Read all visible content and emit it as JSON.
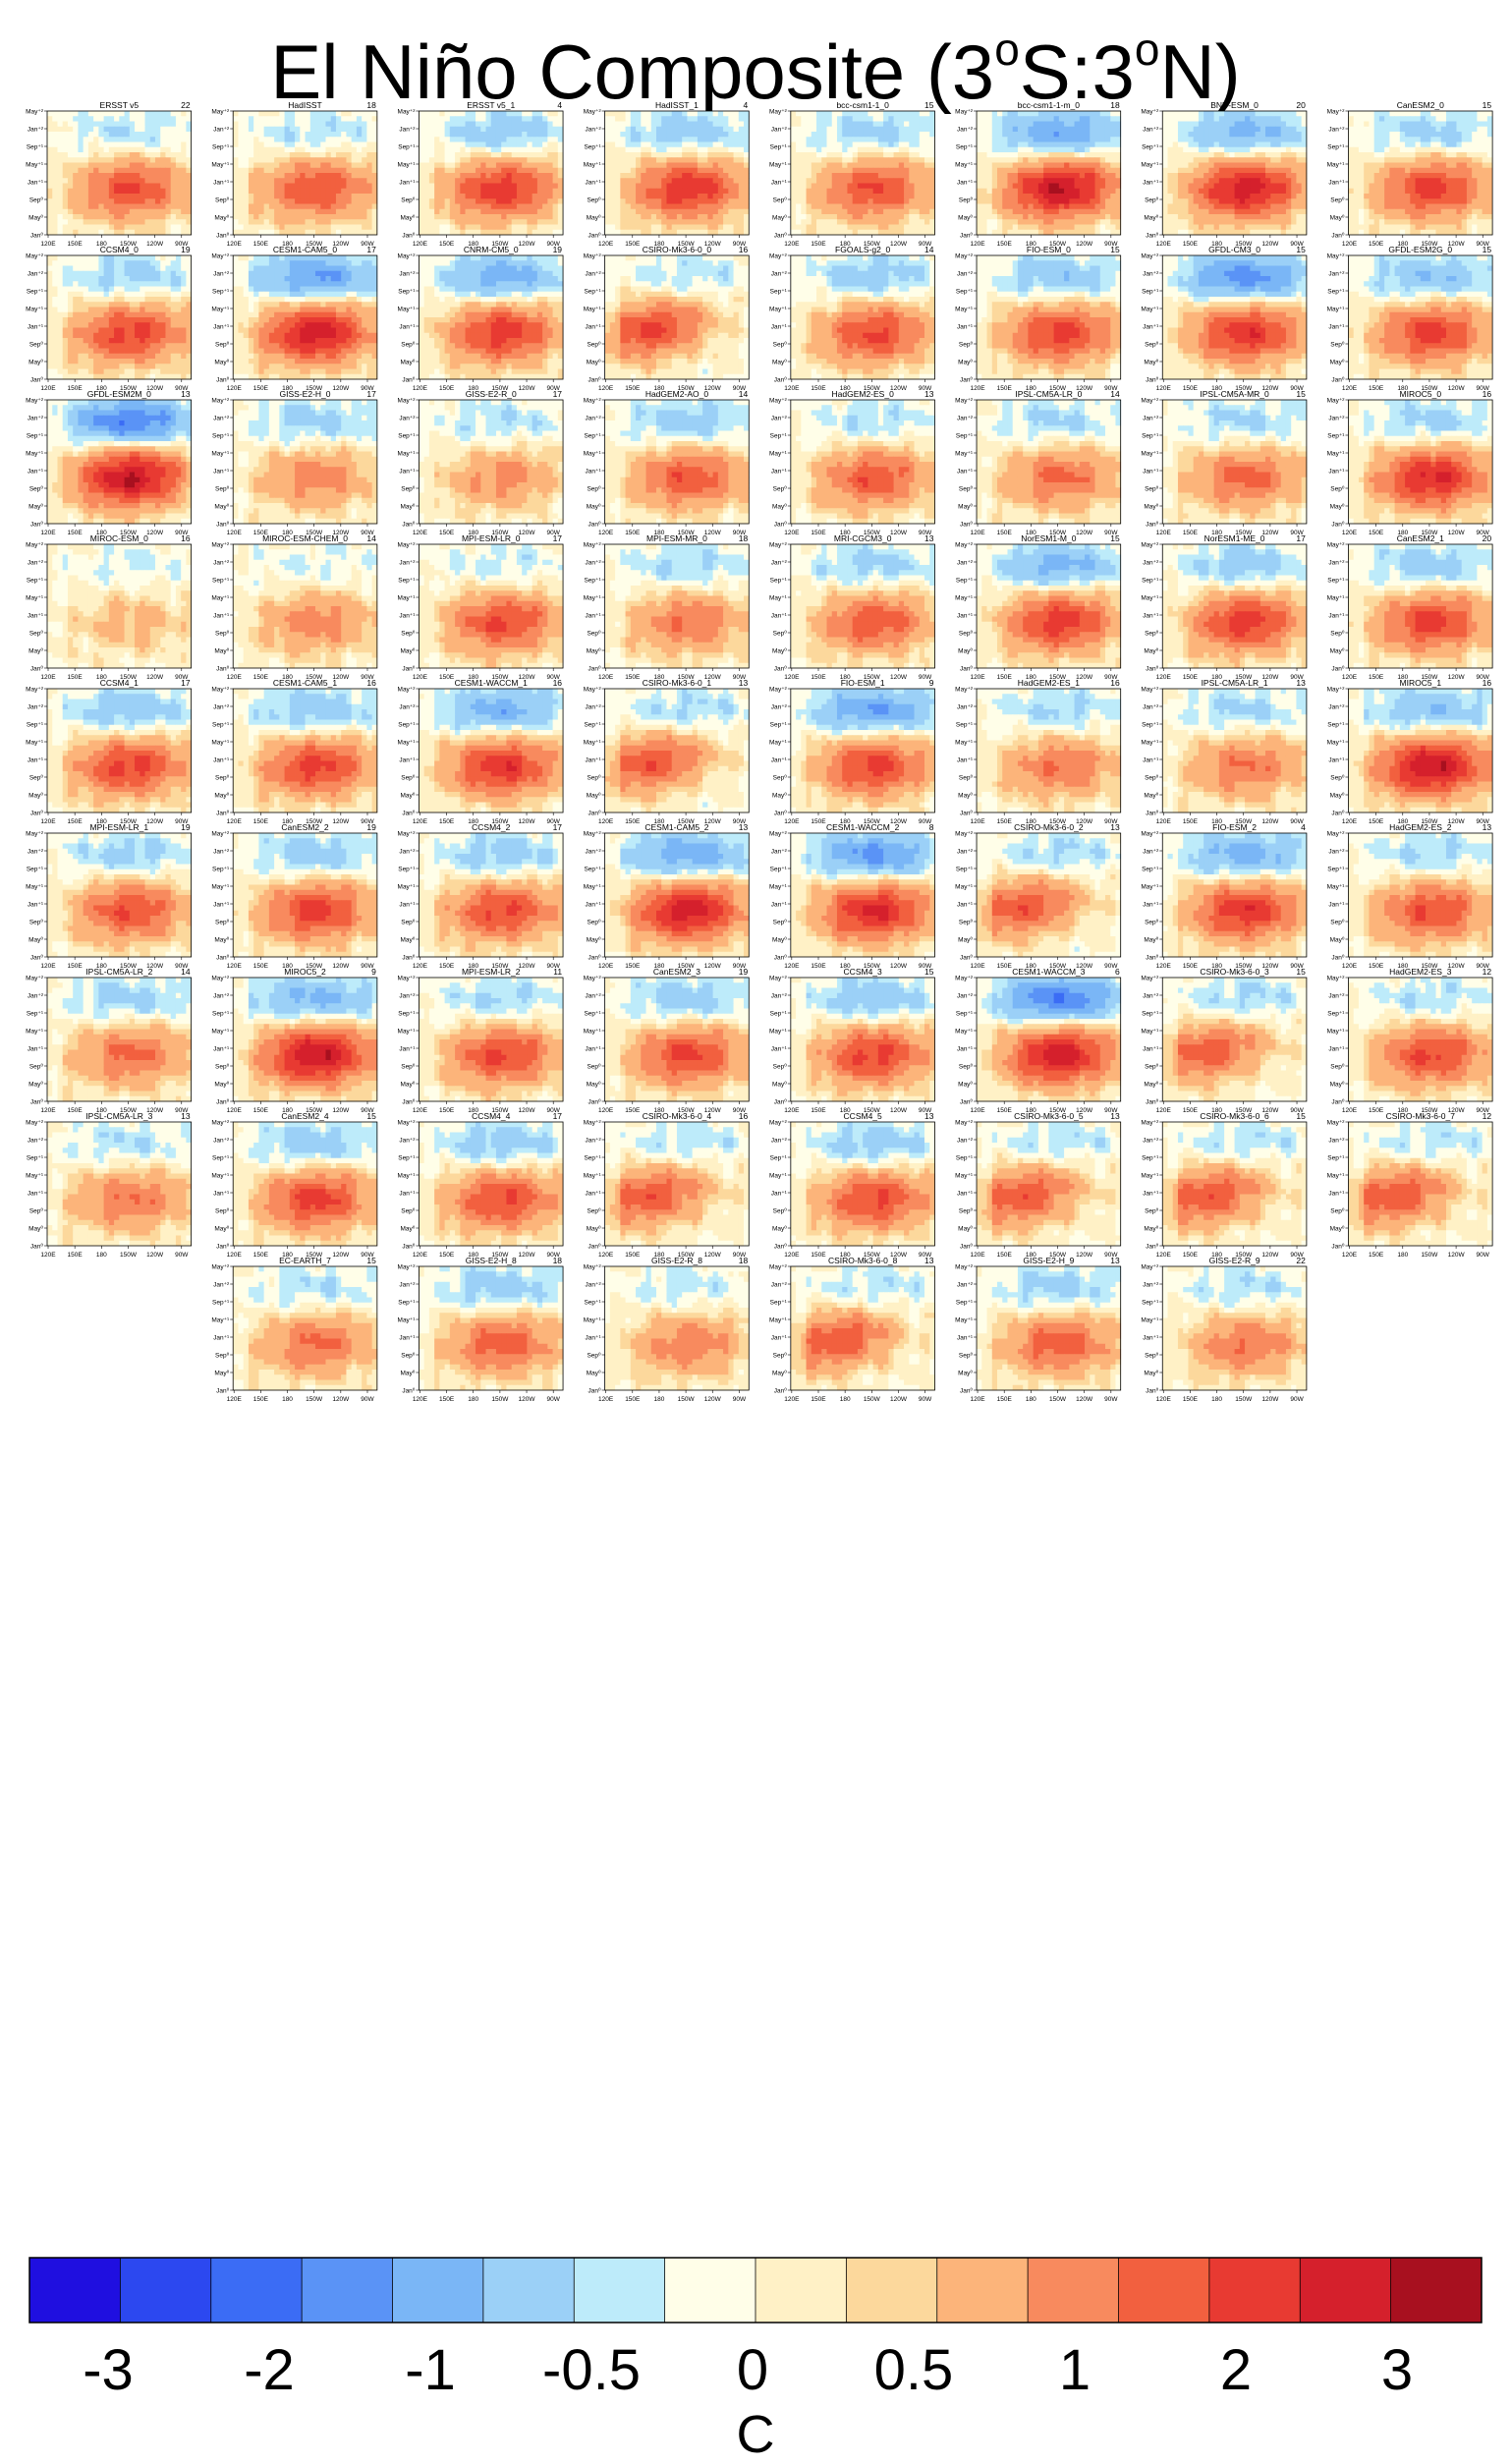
{
  "title": {
    "prefix": "El Niño Composite (3",
    "deg1": "o",
    "mid": "S:3",
    "deg2": "o",
    "suffix": "N)"
  },
  "axes": {
    "x_ticks": [
      "120E",
      "150E",
      "180",
      "150W",
      "120W",
      "90W"
    ],
    "y_ticks": [
      "Jan⁰",
      "May⁰",
      "Sep⁰",
      "Jan⁺¹",
      "May⁺¹",
      "Sep⁺¹",
      "Jan⁺²",
      "May⁺²"
    ]
  },
  "colorbar": {
    "unit": "C",
    "labels": [
      "-3",
      "-2",
      "-1",
      "-0.5",
      "0",
      "0.5",
      "1",
      "2",
      "3"
    ],
    "colors": [
      "#1f0fe0",
      "#2c48f0",
      "#3b6cf5",
      "#5a93f6",
      "#7ab6f6",
      "#9bd0f7",
      "#bdebfa",
      "#fffee8",
      "#fff1c6",
      "#fcd89c",
      "#fcb47a",
      "#f88a5e",
      "#f2603f",
      "#e83a32",
      "#d5202c",
      "#a8101f"
    ]
  },
  "chart_data": {
    "type": "heatmap",
    "title": "El Niño Composite (3oS:3oN)",
    "xlabel": "",
    "ylabel": "",
    "x_ticks": [
      "120E",
      "150E",
      "180",
      "150W",
      "120W",
      "90W"
    ],
    "y_ticks": [
      "Jan0",
      "May0",
      "Sep0",
      "Jan+1",
      "May+1",
      "Sep+1",
      "Jan+2",
      "May+2"
    ],
    "colorbar": {
      "unit": "C",
      "ticks": [
        -3,
        -2,
        -1,
        -0.5,
        0,
        0.5,
        1,
        2,
        3
      ]
    },
    "panels": [
      {
        "name": "ERSST v5",
        "count": 22,
        "peak": 2.0,
        "neg": 0.5,
        "west": 0
      },
      {
        "name": "HadISST",
        "count": 18,
        "peak": 2.0,
        "neg": 0.5,
        "west": 0
      },
      {
        "name": "ERSST v5_1",
        "count": 4,
        "peak": 2.3,
        "neg": 0.8,
        "west": 0
      },
      {
        "name": "HadISST_1",
        "count": 4,
        "peak": 2.4,
        "neg": 0.8,
        "west": 0
      },
      {
        "name": "bcc-csm1-1_0",
        "count": 15,
        "peak": 2.0,
        "neg": 0.7,
        "west": 0
      },
      {
        "name": "bcc-csm1-1-m_0",
        "count": 18,
        "peak": 3.0,
        "neg": 1.5,
        "west": 0
      },
      {
        "name": "BNU-ESM_0",
        "count": 20,
        "peak": 2.8,
        "neg": 1.2,
        "west": 0
      },
      {
        "name": "CanESM2_0",
        "count": 15,
        "peak": 2.2,
        "neg": 0.7,
        "west": 0
      },
      {
        "name": "CCSM4_0",
        "count": 19,
        "peak": 2.2,
        "neg": 0.7,
        "west": 0
      },
      {
        "name": "CESM1-CAM5_0",
        "count": 17,
        "peak": 2.8,
        "neg": 1.6,
        "west": 0
      },
      {
        "name": "CNRM-CM5_0",
        "count": 19,
        "peak": 2.3,
        "neg": 1.3,
        "west": 0
      },
      {
        "name": "CSIRO-Mk3-6-0_0",
        "count": 16,
        "peak": 2.1,
        "neg": 0.5,
        "west": 1
      },
      {
        "name": "FGOALS-g2_0",
        "count": 14,
        "peak": 2.1,
        "neg": 0.8,
        "west": 0
      },
      {
        "name": "FIO-ESM_0",
        "count": 15,
        "peak": 2.2,
        "neg": 0.9,
        "west": 0
      },
      {
        "name": "GFDL-CM3_0",
        "count": 15,
        "peak": 2.4,
        "neg": 1.8,
        "west": 0
      },
      {
        "name": "GFDL-ESM2G_0",
        "count": 15,
        "peak": 2.2,
        "neg": 1.0,
        "west": 0
      },
      {
        "name": "GFDL-ESM2M_0",
        "count": 13,
        "peak": 3.0,
        "neg": 2.0,
        "west": 0
      },
      {
        "name": "GISS-E2-H_0",
        "count": 17,
        "peak": 1.3,
        "neg": 0.7,
        "west": 0
      },
      {
        "name": "GISS-E2-R_0",
        "count": 17,
        "peak": 1.2,
        "neg": 0.5,
        "west": 0
      },
      {
        "name": "HadGEM2-AO_0",
        "count": 14,
        "peak": 1.9,
        "neg": 0.8,
        "west": 0
      },
      {
        "name": "HadGEM2-ES_0",
        "count": 13,
        "peak": 1.9,
        "neg": 0.5,
        "west": 0
      },
      {
        "name": "IPSL-CM5A-LR_0",
        "count": 14,
        "peak": 1.6,
        "neg": 0.6,
        "west": 0
      },
      {
        "name": "IPSL-CM5A-MR_0",
        "count": 15,
        "peak": 1.7,
        "neg": 0.6,
        "west": 0
      },
      {
        "name": "MIROC5_0",
        "count": 16,
        "peak": 2.6,
        "neg": 0.7,
        "west": 0
      },
      {
        "name": "MIROC-ESM_0",
        "count": 16,
        "peak": 0.7,
        "neg": 0.3,
        "west": 0
      },
      {
        "name": "MIROC-ESM-CHEM_0",
        "count": 14,
        "peak": 1.3,
        "neg": 0.3,
        "west": 0
      },
      {
        "name": "MPI-ESM-LR_0",
        "count": 17,
        "peak": 2.1,
        "neg": 0.4,
        "west": 0
      },
      {
        "name": "MPI-ESM-MR_0",
        "count": 18,
        "peak": 1.5,
        "neg": 0.6,
        "west": 0
      },
      {
        "name": "MRI-CGCM3_0",
        "count": 13,
        "peak": 1.9,
        "neg": 0.7,
        "west": 0
      },
      {
        "name": "NorESM1-M_0",
        "count": 15,
        "peak": 2.3,
        "neg": 1.2,
        "west": 0
      },
      {
        "name": "NorESM1-ME_0",
        "count": 17,
        "peak": 2.3,
        "neg": 0.8,
        "west": 0
      },
      {
        "name": "CanESM2_1",
        "count": 20,
        "peak": 2.2,
        "neg": 0.8,
        "west": 0
      },
      {
        "name": "CCSM4_1",
        "count": 17,
        "peak": 2.2,
        "neg": 0.9,
        "west": 0
      },
      {
        "name": "CESM1-CAM5_1",
        "count": 16,
        "peak": 2.2,
        "neg": 0.9,
        "west": 0
      },
      {
        "name": "CESM1-WACCM_1",
        "count": 16,
        "peak": 2.4,
        "neg": 1.3,
        "west": 0
      },
      {
        "name": "CSIRO-Mk3-6-0_1",
        "count": 13,
        "peak": 1.9,
        "neg": 0.6,
        "west": 1
      },
      {
        "name": "FIO-ESM_1",
        "count": 9,
        "peak": 2.2,
        "neg": 1.5,
        "west": 0
      },
      {
        "name": "HadGEM2-ES_1",
        "count": 16,
        "peak": 1.5,
        "neg": 0.6,
        "west": 0
      },
      {
        "name": "IPSL-CM5A-LR_1",
        "count": 13,
        "peak": 1.5,
        "neg": 0.6,
        "west": 0
      },
      {
        "name": "MIROC5_1",
        "count": 16,
        "peak": 3.0,
        "neg": 1.0,
        "west": 0
      },
      {
        "name": "MPI-ESM-LR_1",
        "count": 19,
        "peak": 2.0,
        "neg": 0.7,
        "west": 0
      },
      {
        "name": "CanESM2_2",
        "count": 19,
        "peak": 2.2,
        "neg": 0.8,
        "west": 0
      },
      {
        "name": "CCSM4_2",
        "count": 17,
        "peak": 2.1,
        "neg": 0.8,
        "west": 0
      },
      {
        "name": "CESM1-CAM5_2",
        "count": 13,
        "peak": 2.8,
        "neg": 1.4,
        "west": 0
      },
      {
        "name": "CESM1-WACCM_2",
        "count": 8,
        "peak": 2.6,
        "neg": 1.7,
        "west": 0
      },
      {
        "name": "CSIRO-Mk3-6-0_2",
        "count": 13,
        "peak": 1.9,
        "neg": 0.6,
        "west": 1
      },
      {
        "name": "FIO-ESM_2",
        "count": 4,
        "peak": 2.4,
        "neg": 1.3,
        "west": 0
      },
      {
        "name": "HadGEM2-ES_2",
        "count": 13,
        "peak": 2.0,
        "neg": 0.6,
        "west": 0
      },
      {
        "name": "IPSL-CM5A-LR_2",
        "count": 14,
        "peak": 1.6,
        "neg": 0.7,
        "west": 0
      },
      {
        "name": "MIROC5_2",
        "count": 9,
        "peak": 3.0,
        "neg": 1.2,
        "west": 0
      },
      {
        "name": "MPI-ESM-LR_2",
        "count": 11,
        "peak": 2.1,
        "neg": 0.6,
        "west": 0
      },
      {
        "name": "CanESM2_3",
        "count": 19,
        "peak": 2.1,
        "neg": 0.8,
        "west": 0
      },
      {
        "name": "CCSM4_3",
        "count": 15,
        "peak": 2.2,
        "neg": 0.9,
        "west": 0
      },
      {
        "name": "CESM1-WACCM_3",
        "count": 6,
        "peak": 2.8,
        "neg": 2.0,
        "west": 0
      },
      {
        "name": "CSIRO-Mk3-6-0_3",
        "count": 15,
        "peak": 1.8,
        "neg": 0.6,
        "west": 1
      },
      {
        "name": "HadGEM2-ES_3",
        "count": 12,
        "peak": 2.1,
        "neg": 0.5,
        "west": 0
      },
      {
        "name": "IPSL-CM5A-LR_3",
        "count": 13,
        "peak": 1.5,
        "neg": 0.5,
        "west": 0
      },
      {
        "name": "CanESM2_4",
        "count": 15,
        "peak": 2.2,
        "neg": 0.8,
        "west": 0
      },
      {
        "name": "CCSM4_4",
        "count": 17,
        "peak": 2.1,
        "neg": 0.8,
        "west": 0
      },
      {
        "name": "CSIRO-Mk3-6-0_4",
        "count": 16,
        "peak": 1.9,
        "neg": 0.5,
        "west": 1
      },
      {
        "name": "CCSM4_5",
        "count": 13,
        "peak": 2.1,
        "neg": 0.8,
        "west": 0
      },
      {
        "name": "CSIRO-Mk3-6-0_5",
        "count": 13,
        "peak": 1.9,
        "neg": 0.5,
        "west": 1
      },
      {
        "name": "CSIRO-Mk3-6-0_6",
        "count": 15,
        "peak": 1.9,
        "neg": 0.5,
        "west": 1
      },
      {
        "name": "CSIRO-Mk3-6-0_7",
        "count": 12,
        "peak": 1.9,
        "neg": 0.5,
        "west": 1
      },
      {
        "name": "EC-EARTH_7",
        "count": 15,
        "peak": 1.6,
        "neg": 0.5,
        "west": 0
      },
      {
        "name": "GISS-E2-H_8",
        "count": 18,
        "peak": 1.8,
        "neg": 0.8,
        "west": 0
      },
      {
        "name": "GISS-E2-R_8",
        "count": 18,
        "peak": 1.4,
        "neg": 0.4,
        "west": 0
      },
      {
        "name": "CSIRO-Mk3-6-0_8",
        "count": 13,
        "peak": 1.9,
        "neg": 0.5,
        "west": 1
      },
      {
        "name": "GISS-E2-H_9",
        "count": 13,
        "peak": 1.8,
        "neg": 0.7,
        "west": 0
      },
      {
        "name": "GISS-E2-R_9",
        "count": 22,
        "peak": 1.5,
        "neg": 0.5,
        "west": 0
      }
    ]
  }
}
